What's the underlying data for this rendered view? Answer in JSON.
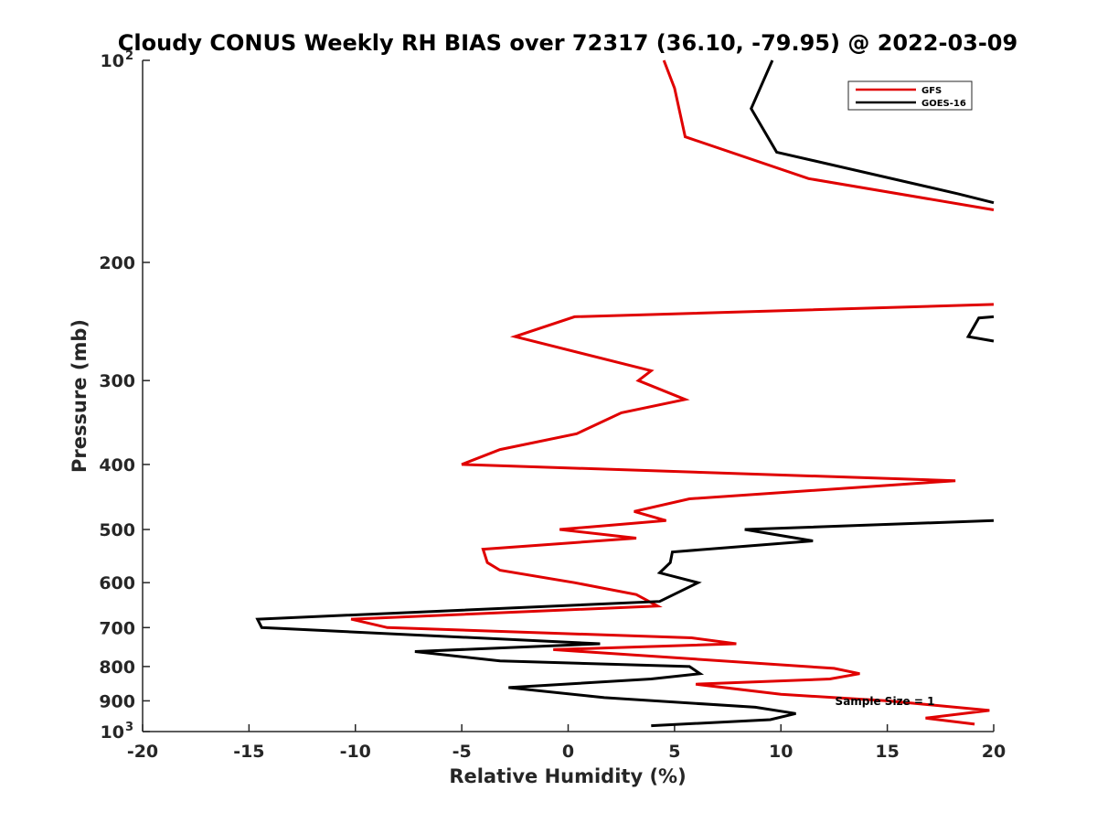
{
  "chart_data": {
    "type": "line",
    "title": "Cloudy CONUS Weekly RH BIAS over 72317 (36.10, -79.95) @ 2022-03-09",
    "xlabel": "Relative Humidity (%)",
    "ylabel": "Pressure (mb)",
    "xlim": [
      -20,
      20
    ],
    "ylim": [
      100,
      1000
    ],
    "yscale": "log",
    "y_reversed": true,
    "x_ticks": [
      -20,
      -15,
      -10,
      -5,
      0,
      5,
      10,
      15,
      20
    ],
    "x_tick_labels": [
      "-20",
      "-15",
      "-10",
      "-5",
      "0",
      "5",
      "10",
      "15",
      "20"
    ],
    "y_ticks": [
      100,
      200,
      300,
      400,
      500,
      600,
      700,
      800,
      900,
      1000
    ],
    "y_tick_labels": [
      {
        "base": "10",
        "sup": "2"
      },
      {
        "base": "200",
        "sup": ""
      },
      {
        "base": "300",
        "sup": ""
      },
      {
        "base": "400",
        "sup": ""
      },
      {
        "base": "500",
        "sup": ""
      },
      {
        "base": "600",
        "sup": ""
      },
      {
        "base": "700",
        "sup": ""
      },
      {
        "base": "800",
        "sup": ""
      },
      {
        "base": "900",
        "sup": ""
      },
      {
        "base": "10",
        "sup": "3"
      }
    ],
    "grid": false,
    "legend_position": "top-right",
    "annotation": "Sample Size = 1",
    "series": [
      {
        "name": "GFS",
        "color": "#e00000",
        "points": [
          [
            4.5,
            100
          ],
          [
            5,
            110
          ],
          [
            5.5,
            130
          ],
          [
            11.3,
            150
          ],
          [
            20,
            167
          ],
          [
            null,
            null
          ],
          [
            20,
            231
          ],
          [
            0.3,
            241
          ],
          [
            -2.5,
            258
          ],
          [
            3.9,
            290
          ],
          [
            3.3,
            300
          ],
          [
            5.5,
            320
          ],
          [
            2.5,
            335
          ],
          [
            0.4,
            360
          ],
          [
            -3.2,
            380
          ],
          [
            -5,
            400
          ],
          [
            18.2,
            423
          ],
          [
            5.7,
            450
          ],
          [
            3.1,
            470
          ],
          [
            4.6,
            485
          ],
          [
            -0.4,
            500
          ],
          [
            3.2,
            515
          ],
          [
            -4,
            535
          ],
          [
            -3.8,
            560
          ],
          [
            -3.2,
            575
          ],
          [
            0.3,
            600
          ],
          [
            3.2,
            625
          ],
          [
            4.2,
            650
          ],
          [
            -10.2,
            680
          ],
          [
            -8.5,
            700
          ],
          [
            5.8,
            725
          ],
          [
            7.9,
            740
          ],
          [
            -0.7,
            755
          ],
          [
            12.5,
            805
          ],
          [
            13.7,
            820
          ],
          [
            12.3,
            835
          ],
          [
            6,
            850
          ],
          [
            10,
            880
          ],
          [
            15,
            900
          ],
          [
            19.8,
            930
          ],
          [
            16.8,
            955
          ],
          [
            19.1,
            975
          ]
        ]
      },
      {
        "name": "GOES-16",
        "color": "#000000",
        "points": [
          [
            9.6,
            100
          ],
          [
            8.6,
            118
          ],
          [
            9.8,
            137
          ],
          [
            18.3,
            158
          ],
          [
            20,
            163
          ],
          [
            null,
            null
          ],
          [
            20,
            241
          ],
          [
            19.3,
            242
          ],
          [
            18.8,
            258
          ],
          [
            20,
            262
          ],
          [
            null,
            null
          ],
          [
            20,
            485
          ],
          [
            8.3,
            500
          ],
          [
            11.5,
            520
          ],
          [
            4.9,
            540
          ],
          [
            4.8,
            560
          ],
          [
            4.3,
            580
          ],
          [
            6.1,
            600
          ],
          [
            4.3,
            640
          ],
          [
            -14.6,
            680
          ],
          [
            -14.4,
            700
          ],
          [
            1.5,
            740
          ],
          [
            -7.2,
            760
          ],
          [
            -3.2,
            785
          ],
          [
            5.7,
            800
          ],
          [
            6.2,
            820
          ],
          [
            3.9,
            835
          ],
          [
            -2.8,
            860
          ],
          [
            1.7,
            890
          ],
          [
            8.8,
            920
          ],
          [
            10.7,
            940
          ],
          [
            9.5,
            960
          ],
          [
            3.9,
            980
          ]
        ]
      }
    ]
  }
}
